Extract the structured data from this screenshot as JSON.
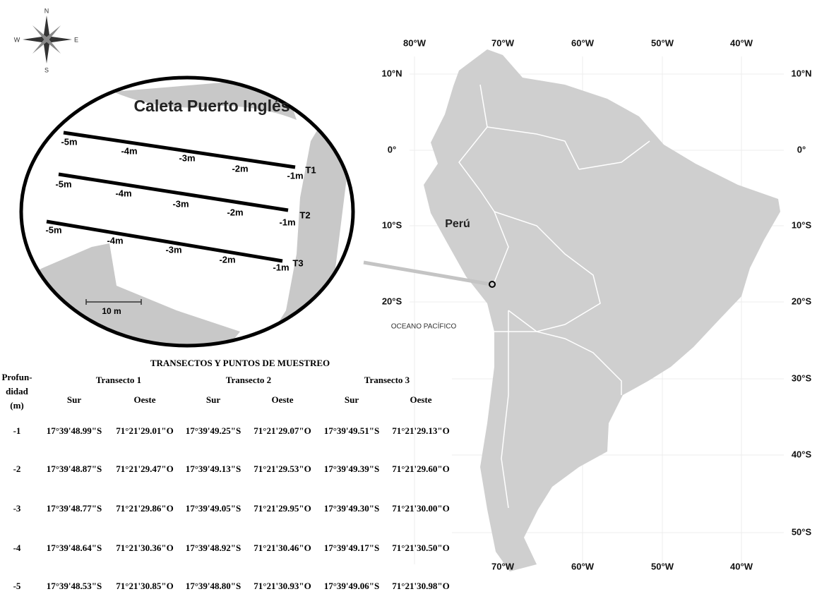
{
  "compass": {
    "north": "N",
    "south": "S",
    "west": "W",
    "east": "E"
  },
  "inset": {
    "title": "Caleta Puerto Inglés",
    "scale": "10 m",
    "transects": [
      {
        "label": "T1",
        "depths": [
          "-5m",
          "-4m",
          "-3m",
          "-2m",
          "-1m"
        ]
      },
      {
        "label": "T2",
        "depths": [
          "-5m",
          "-4m",
          "-3m",
          "-2m",
          "-1m"
        ]
      },
      {
        "label": "T3",
        "depths": [
          "-5m",
          "-4m",
          "-3m",
          "-2m",
          "-1m"
        ]
      }
    ]
  },
  "map": {
    "lon_top": [
      "80°W",
      "70°W",
      "60°W",
      "50°W",
      "40°W"
    ],
    "lon_bottom": [
      "70°W",
      "60°W",
      "50°W",
      "40°W"
    ],
    "lat_left": [
      "10°N",
      "0°",
      "10°S",
      "20°S"
    ],
    "lat_right": [
      "10°N",
      "0°",
      "10°S",
      "20°S",
      "30°S",
      "40°S",
      "50°S"
    ],
    "country": "Perú",
    "ocean": "OCEANO PACÍFICO"
  },
  "table": {
    "title": "TRANSECTOS Y PUNTOS DE MUESTREO",
    "depth_header": [
      "Profun-",
      "didad",
      "(m)"
    ],
    "groups": [
      "Transecto 1",
      "Transecto 2",
      "Transecto 3"
    ],
    "columns": [
      "Sur",
      "Oeste",
      "Sur",
      "Oeste",
      "Sur",
      "Oeste"
    ],
    "rows": [
      [
        "-1",
        "17°39'48.99\"S",
        "71°21'29.01\"O",
        "17°39'49.25\"S",
        "71°21'29.07\"O",
        "17°39'49.51\"S",
        "71°21'29.13\"O"
      ],
      [
        "-2",
        "17°39'48.87\"S",
        "71°21'29.47\"O",
        "17°39'49.13\"S",
        "71°21'29.53\"O",
        "17°39'49.39\"S",
        "71°21'29.60\"O"
      ],
      [
        "-3",
        "17°39'48.77\"S",
        "71°21'29.86\"O",
        "17°39'49.05\"S",
        "71°21'29.95\"O",
        "17°39'49.30\"S",
        "71°21'30.00\"O"
      ],
      [
        "-4",
        "17°39'48.64\"S",
        "71°21'30.36\"O",
        "17°39'48.92\"S",
        "71°21'30.46\"O",
        "17°39'49.17\"S",
        "71°21'30.50\"O"
      ],
      [
        "-5",
        "17°39'48.53\"S",
        "71°21'30.85\"O",
        "17°39'48.80\"S",
        "71°21'30.93\"O",
        "17°39'49.06\"S",
        "71°21'30.98\"O"
      ]
    ]
  }
}
